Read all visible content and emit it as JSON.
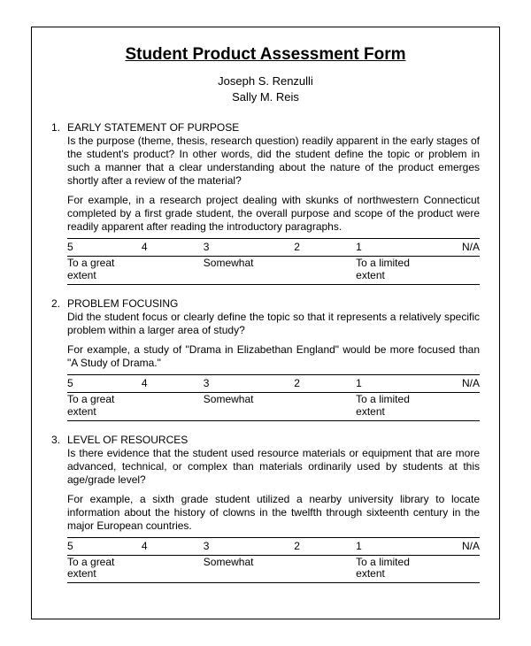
{
  "title": "Student Product Assessment Form",
  "authors": [
    "Joseph S. Renzulli",
    "Sally M. Reis"
  ],
  "scale": {
    "numbers": [
      "5",
      "4",
      "3",
      "2",
      "1",
      "N/A"
    ],
    "labels": [
      "To a great extent",
      "",
      "Somewhat",
      "",
      "To a limited extent",
      ""
    ]
  },
  "sections": [
    {
      "num": "1.",
      "title": "EARLY STATEMENT OF PURPOSE",
      "question": "Is the purpose (theme, thesis, research question) readily apparent in the early stages of the student's product?  In other words, did the student define the topic or problem in such a manner that a clear understanding about the nature of the product emerges shortly after a review of the material?",
      "example": "For example, in a research project dealing with skunks of northwestern Connecticut completed by a first grade student, the overall purpose and scope of the product were readily apparent after reading the introductory paragraphs."
    },
    {
      "num": "2.",
      "title": "PROBLEM FOCUSING",
      "question": "Did the student focus or clearly define the topic so that it represents a relatively specific problem within a larger area of study?",
      "example": "For example, a study of \"Drama in Elizabethan England\" would be more focused than \"A Study of Drama.\""
    },
    {
      "num": "3.",
      "title": "LEVEL OF RESOURCES",
      "question": "Is there evidence that the student used resource materials or equipment that are more advanced, technical, or complex than materials ordinarily used by students at this age/grade level?",
      "example": "For example, a sixth grade student utilized a nearby university library to locate information about the history of clowns in the twelfth through sixteenth century in the major European countries."
    }
  ]
}
